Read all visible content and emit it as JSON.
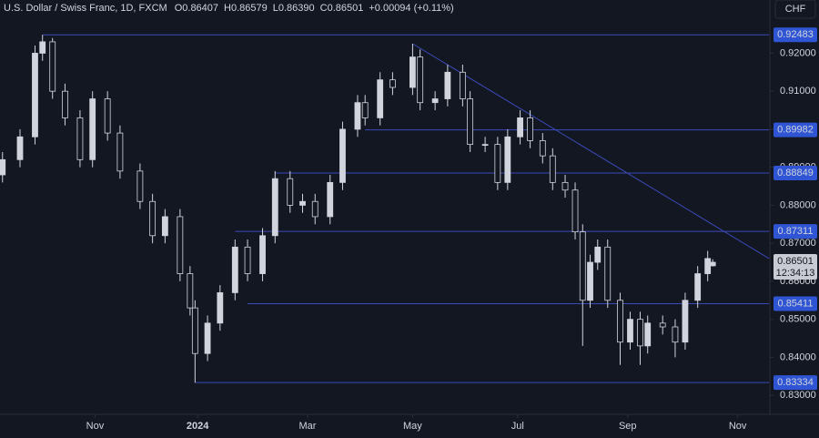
{
  "chart_data": {
    "type": "candlestick",
    "title": "U.S. Dollar / Swiss Franc, 1D, FXCM",
    "header": {
      "ohlc": [
        [
          "O",
          "0.86407"
        ],
        [
          "H",
          "0.86579"
        ],
        [
          "L",
          "0.86390"
        ],
        [
          "C",
          "0.86501"
        ]
      ],
      "change": "+0.00094 (+0.11%)"
    },
    "currency": "CHF",
    "countdown": "12:34:13",
    "x": [
      0,
      7,
      13,
      16,
      20,
      25,
      31,
      36,
      42,
      47,
      55,
      60,
      65,
      71,
      75,
      77,
      82,
      87,
      93,
      98,
      104,
      109,
      115,
      120,
      125,
      131,
      136,
      142,
      145,
      151,
      156,
      164,
      167,
      173,
      178,
      184,
      187,
      193,
      198,
      202,
      207,
      211,
      216,
      220,
      225,
      229,
      232,
      235,
      238,
      242,
      247,
      251,
      255,
      258,
      264,
      269,
      273,
      278,
      282,
      284
    ],
    "open": [
      0.888,
      0.892,
      0.898,
      0.92,
      0.923,
      0.91,
      0.903,
      0.892,
      0.908,
      0.899,
      0.889,
      0.881,
      0.872,
      0.877,
      0.862,
      0.853,
      0.841,
      0.849,
      0.857,
      0.869,
      0.862,
      0.872,
      0.887,
      0.88,
      0.881,
      0.877,
      0.886,
      0.9,
      0.907,
      0.903,
      0.913,
      0.911,
      0.919,
      0.907,
      0.908,
      0.915,
      0.908,
      0.896,
      0.896,
      0.886,
      0.898,
      0.903,
      0.897,
      0.893,
      0.886,
      0.884,
      0.873,
      0.855,
      0.865,
      0.869,
      0.855,
      0.844,
      0.85,
      0.843,
      0.849,
      0.848,
      0.844,
      0.855,
      0.862,
      0.86407
    ],
    "high": [
      0.894,
      0.9,
      0.922,
      0.92483,
      0.924,
      0.912,
      0.905,
      0.91,
      0.91,
      0.901,
      0.891,
      0.883,
      0.879,
      0.879,
      0.864,
      0.855,
      0.851,
      0.859,
      0.871,
      0.871,
      0.874,
      0.889,
      0.889,
      0.883,
      0.883,
      0.888,
      0.902,
      0.909,
      0.909,
      0.915,
      0.915,
      0.9225,
      0.921,
      0.91,
      0.917,
      0.917,
      0.91,
      0.898,
      0.898,
      0.9,
      0.905,
      0.905,
      0.899,
      0.895,
      0.888,
      0.886,
      0.875,
      0.867,
      0.871,
      0.871,
      0.857,
      0.852,
      0.852,
      0.851,
      0.851,
      0.85,
      0.857,
      0.864,
      0.868,
      0.86579
    ],
    "low": [
      0.886,
      0.89,
      0.896,
      0.918,
      0.908,
      0.901,
      0.89,
      0.89,
      0.897,
      0.887,
      0.879,
      0.87,
      0.87,
      0.86,
      0.851,
      0.83334,
      0.839,
      0.847,
      0.855,
      0.86,
      0.86,
      0.87,
      0.878,
      0.878,
      0.875,
      0.875,
      0.884,
      0.898,
      0.901,
      0.901,
      0.909,
      0.909,
      0.905,
      0.905,
      0.906,
      0.906,
      0.894,
      0.894,
      0.884,
      0.884,
      0.896,
      0.895,
      0.891,
      0.884,
      0.882,
      0.871,
      0.843,
      0.853,
      0.863,
      0.853,
      0.838,
      0.842,
      0.838,
      0.841,
      0.846,
      0.84,
      0.842,
      0.853,
      0.86,
      0.8639
    ],
    "close": [
      0.892,
      0.898,
      0.92,
      0.923,
      0.91,
      0.903,
      0.892,
      0.908,
      0.899,
      0.889,
      0.881,
      0.872,
      0.877,
      0.862,
      0.853,
      0.841,
      0.849,
      0.857,
      0.869,
      0.862,
      0.872,
      0.887,
      0.88,
      0.881,
      0.877,
      0.886,
      0.9,
      0.907,
      0.903,
      0.913,
      0.911,
      0.919,
      0.907,
      0.908,
      0.915,
      0.908,
      0.896,
      0.896,
      0.886,
      0.898,
      0.903,
      0.897,
      0.893,
      0.886,
      0.884,
      0.873,
      0.855,
      0.865,
      0.869,
      0.855,
      0.844,
      0.85,
      0.843,
      0.849,
      0.848,
      0.844,
      0.855,
      0.862,
      0.866,
      0.86501
    ],
    "up_color": "#d1d4dc",
    "down_color": "#131722",
    "line_color": "#3a4ab8",
    "label_color": "#2f55d4",
    "levels": [
      {
        "value": 0.92483,
        "start_x": 16
      },
      {
        "value": 0.89982,
        "start_x": 145
      },
      {
        "value": 0.88849,
        "start_x": 109
      },
      {
        "value": 0.87311,
        "start_x": 93
      },
      {
        "value": 0.85411,
        "start_x": 98
      },
      {
        "value": 0.83334,
        "start_x": 77
      }
    ],
    "trendline": {
      "x": [
        164,
        306.5
      ],
      "y": [
        0.9225,
        0.866
      ]
    },
    "xlim": [
      -1,
      306.5
    ],
    "xticks": [
      {
        "value": 37,
        "label": "Nov"
      },
      {
        "value": 78,
        "label": "2024"
      },
      {
        "value": 122,
        "label": "Mar"
      },
      {
        "value": 164,
        "label": "May"
      },
      {
        "value": 206,
        "label": "Jul"
      },
      {
        "value": 250,
        "label": "Sep"
      },
      {
        "value": 294,
        "label": "Nov"
      }
    ],
    "ylim": [
      0.825,
      0.934
    ],
    "yticks": [
      {
        "value": 0.83,
        "label": "0.83000"
      },
      {
        "value": 0.84,
        "label": "0.84000"
      },
      {
        "value": 0.85,
        "label": "0.85000"
      },
      {
        "value": 0.86,
        "label": "0.86000"
      },
      {
        "value": 0.87,
        "label": "0.87000"
      },
      {
        "value": 0.88,
        "label": "0.88000"
      },
      {
        "value": 0.89,
        "label": "0.89000"
      },
      {
        "value": 0.9,
        "label": "0.90000"
      },
      {
        "value": 0.91,
        "label": "0.91000"
      },
      {
        "value": 0.92,
        "label": "0.92000"
      }
    ],
    "grid": false
  }
}
